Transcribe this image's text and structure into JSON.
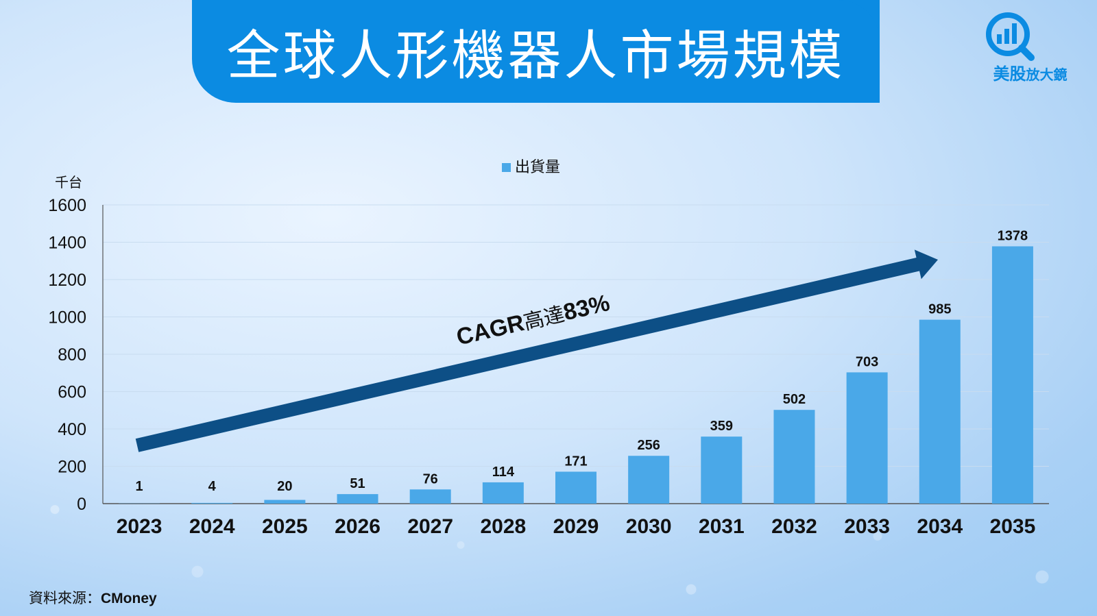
{
  "title": "全球人形機器人市場規模",
  "logo": {
    "main": "美股",
    "sub": "放大鏡"
  },
  "source": {
    "label": "資料來源：",
    "name": "CMoney"
  },
  "colors": {
    "bar": "#4aa8e8",
    "arrow": "#0d4f86",
    "banner": "#0b8be2"
  },
  "chart_data": {
    "type": "bar",
    "title": "全球人形機器人市場規模",
    "ylabel": "千台",
    "xlabel": "",
    "ylim": [
      0,
      1600
    ],
    "yticks": [
      0,
      200,
      400,
      600,
      800,
      1000,
      1200,
      1400,
      1600
    ],
    "grid": true,
    "legend": "top-center",
    "categories": [
      "2023",
      "2024",
      "2025",
      "2026",
      "2027",
      "2028",
      "2029",
      "2030",
      "2031",
      "2032",
      "2033",
      "2034",
      "2035"
    ],
    "series": [
      {
        "name": "出貨量",
        "values": [
          1,
          4,
          20,
          51,
          76,
          114,
          171,
          256,
          359,
          502,
          703,
          985,
          1378
        ]
      }
    ],
    "annotation": {
      "prefix": "CAGR",
      "middle": "高達",
      "value": "83%"
    }
  }
}
